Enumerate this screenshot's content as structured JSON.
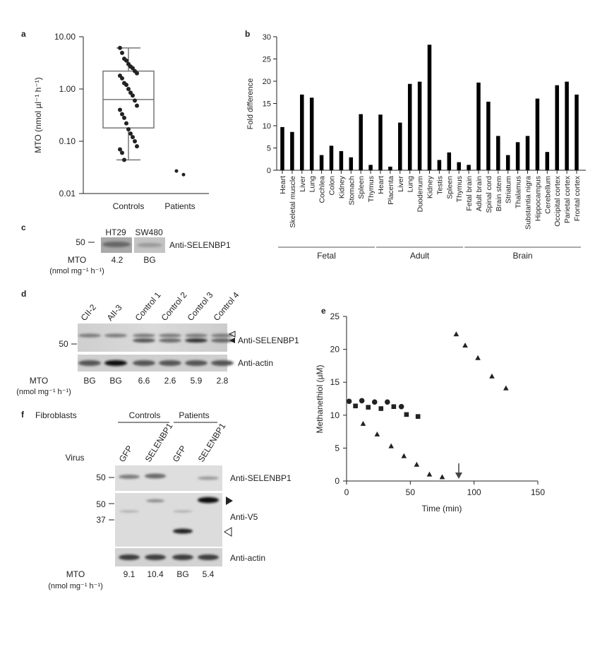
{
  "panel_letters": {
    "a": "a",
    "b": "b",
    "c": "c",
    "d": "d",
    "e": "e",
    "f": "f"
  },
  "chart_data": [
    {
      "panel": "a",
      "type": "scatter",
      "ylabel": "MTO (nmol µl⁻¹ h⁻¹)",
      "y_scale": "log",
      "ylim": [
        0.01,
        10
      ],
      "y_ticks": [
        "10.00",
        "1.00",
        "0.10",
        "0.01"
      ],
      "categories": [
        "Controls",
        "Patients"
      ],
      "box": {
        "category": "Controls",
        "whisker_low": 0.044,
        "q1": 0.18,
        "median": 0.63,
        "q3": 2.2,
        "whisker_high": 6.1
      },
      "points": {
        "Controls": [
          6.1,
          4.9,
          3.8,
          3.5,
          3.0,
          2.7,
          2.5,
          2.2,
          2.0,
          1.8,
          1.6,
          1.3,
          1.2,
          1.0,
          0.85,
          0.75,
          0.6,
          0.48,
          0.4,
          0.33,
          0.28,
          0.22,
          0.17,
          0.14,
          0.12,
          0.1,
          0.08,
          0.07,
          0.06,
          0.044
        ],
        "Patients": [
          0.027,
          0.023
        ]
      },
      "grid": false
    },
    {
      "panel": "b",
      "type": "bar",
      "ylabel": "Fold difference",
      "ylim": [
        0,
        30
      ],
      "y_ticks": [
        0,
        5,
        10,
        15,
        20,
        25,
        30
      ],
      "categories": [
        "Heart",
        "Skeletal muscle",
        "Liver",
        "Lung",
        "Cochlea",
        "Colon",
        "Kidney",
        "Stomach",
        "Spleen",
        "Thymus",
        "Heart",
        "Placenta",
        "Liver",
        "Lung",
        "Duodenum",
        "Kidney",
        "Testis",
        "Spleen",
        "Thymus",
        "Fetal brain",
        "Adult brain",
        "Spinal cord",
        "Brain stem",
        "Striatum",
        "Thalamus",
        "Substantia nigra",
        "Hippocampus",
        "Cerebellum",
        "Occipital cortex",
        "Parietal cortex",
        "Frontal cortex"
      ],
      "values": [
        9.7,
        8.6,
        17.0,
        16.3,
        3.4,
        5.5,
        4.3,
        2.9,
        12.6,
        1.2,
        12.5,
        0.8,
        10.7,
        19.4,
        19.9,
        28.2,
        2.3,
        4.0,
        1.8,
        1.2,
        19.7,
        15.4,
        7.7,
        3.4,
        6.3,
        7.7,
        16.1,
        4.1,
        19.1,
        19.9,
        17.0
      ],
      "groups": [
        {
          "label": "Fetal",
          "start": 0,
          "end": 9
        },
        {
          "label": "Adult",
          "start": 10,
          "end": 18
        },
        {
          "label": "Brain",
          "start": 19,
          "end": 30
        }
      ],
      "grid": false
    },
    {
      "panel": "e",
      "type": "scatter",
      "xlabel": "Time (min)",
      "ylabel": "Methanethiol (µM)",
      "xlim": [
        0,
        150
      ],
      "ylim": [
        0,
        25
      ],
      "x_ticks": [
        0,
        50,
        100,
        150
      ],
      "y_ticks": [
        0,
        5,
        10,
        15,
        20,
        25
      ],
      "series": [
        {
          "marker": "circle",
          "x": [
            2,
            12,
            22,
            32,
            43
          ],
          "y": [
            12.1,
            12.2,
            12.0,
            12.0,
            11.3
          ]
        },
        {
          "marker": "square",
          "x": [
            7,
            17,
            27,
            37,
            47,
            56
          ],
          "y": [
            11.4,
            11.2,
            11.0,
            11.3,
            10.1,
            9.8
          ]
        },
        {
          "marker": "triangle",
          "x": [
            13,
            24,
            35,
            45,
            55,
            65,
            75,
            86,
            93,
            103,
            114,
            125
          ],
          "y": [
            8.7,
            7.1,
            5.3,
            3.8,
            2.5,
            1.0,
            0.6,
            22.3,
            20.6,
            18.7,
            15.9,
            14.1
          ]
        }
      ],
      "arrow_at_x": 88,
      "grid": false
    }
  ],
  "panel_c": {
    "lanes": [
      "HT29",
      "SW480"
    ],
    "marker": "50",
    "antibody": "Anti-SELENBP1",
    "mto_label": "MTO",
    "mto_unit": "(nmol mg⁻¹ h⁻¹)",
    "mto_values": [
      "4.2",
      "BG"
    ]
  },
  "panel_d": {
    "lanes": [
      "CII-2",
      "AII-3",
      "Control 1",
      "Control 2",
      "Control 3",
      "Control 4"
    ],
    "marker": "50",
    "antibodies": [
      "Anti-SELENBP1",
      "Anti-actin"
    ],
    "mto_label": "MTO",
    "mto_unit": "(nmol mg⁻¹ h⁻¹)",
    "mto_values": [
      "BG",
      "BG",
      "6.6",
      "2.6",
      "5.9",
      "2.8"
    ]
  },
  "panel_f": {
    "cells_label": "Fibroblasts",
    "groups": [
      "Controls",
      "Patients"
    ],
    "virus_label": "Virus",
    "lanes": [
      "GFP",
      "SELENBP1",
      "GFP",
      "SELENBP1"
    ],
    "markers": [
      "50",
      "50",
      "37"
    ],
    "antibodies": [
      "Anti-SELENBP1",
      "Anti-V5",
      "Anti-actin"
    ],
    "mto_label": "MTO",
    "mto_unit": "(nmol mg⁻¹ h⁻¹)",
    "mto_values": [
      "9.1",
      "10.4",
      "BG",
      "5.4"
    ]
  },
  "colors": {
    "ink": "#222222",
    "bar": "#000000",
    "box": "#777777",
    "blot_bg": "#d4d4d4"
  }
}
